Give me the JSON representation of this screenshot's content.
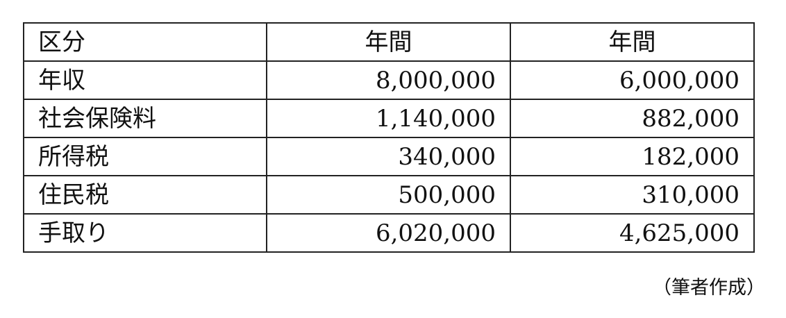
{
  "table": {
    "headers": [
      "区分",
      "年間",
      "年間"
    ],
    "rows": [
      [
        "年収",
        "8,000,000",
        "6,000,000"
      ],
      [
        "社会保険料",
        "1,140,000",
        "882,000"
      ],
      [
        "所得税",
        "340,000",
        "182,000"
      ],
      [
        "住民税",
        "500,000",
        "310,000"
      ],
      [
        "手取り",
        "6,020,000",
        "4,625,000"
      ]
    ]
  },
  "caption": "（筆者作成）"
}
